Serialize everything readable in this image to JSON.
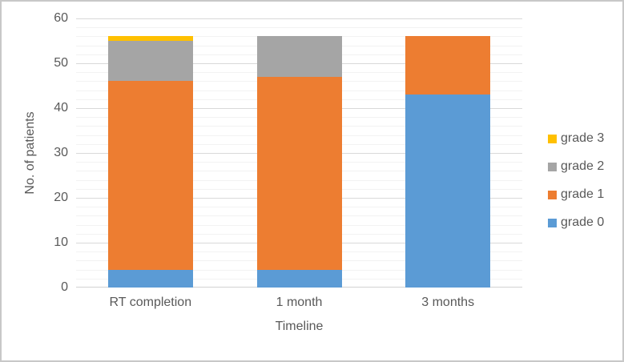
{
  "chart_data": {
    "type": "bar",
    "stacked": true,
    "categories": [
      "RT completion",
      "1 month",
      "3 months"
    ],
    "series": [
      {
        "name": "grade 0",
        "color": "#5B9BD5",
        "values": [
          4,
          4,
          43
        ]
      },
      {
        "name": "grade 1",
        "color": "#ED7D31",
        "values": [
          42,
          43,
          13
        ]
      },
      {
        "name": "grade 2",
        "color": "#A5A5A5",
        "values": [
          9,
          9,
          0
        ]
      },
      {
        "name": "grade 3",
        "color": "#FFC000",
        "values": [
          1,
          0,
          0
        ]
      }
    ],
    "totals_per_category": [
      56,
      56,
      56
    ],
    "xlabel": "Timeline",
    "ylabel": "No. of patients",
    "ylim": [
      0,
      60
    ],
    "y_major_ticks": [
      0,
      10,
      20,
      30,
      40,
      50,
      60
    ],
    "y_minor_unit": 2,
    "grid": true,
    "legend_position": "right",
    "legend_order_top_to_bottom": [
      "grade 3",
      "grade 2",
      "grade 1",
      "grade 0"
    ]
  },
  "colors": {
    "background": "#FFFFFF",
    "text": "#595959",
    "major_gridline": "#D9D9D9",
    "minor_gridline": "#F2F2F2",
    "axis_line": "#D2D2D2",
    "frame_border": "#C8C8C8"
  }
}
